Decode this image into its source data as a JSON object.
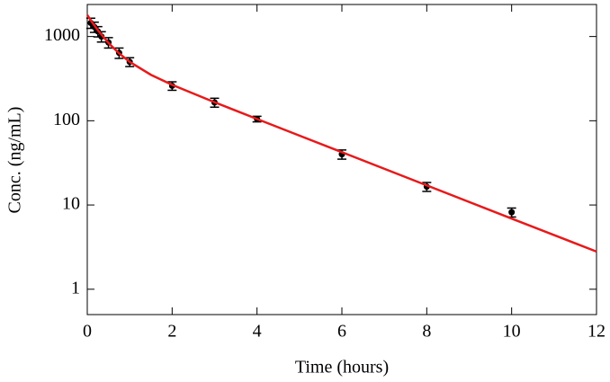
{
  "chart_data": {
    "type": "scatter",
    "xlabel": "Time (hours)",
    "ylabel": "Conc. (ng/mL)",
    "xlim": [
      0,
      12
    ],
    "xticks": [
      0,
      2,
      4,
      6,
      8,
      10,
      12
    ],
    "ylim": [
      0.5,
      2400
    ],
    "yticks": [
      1,
      10,
      100,
      1000
    ],
    "yscale": "log",
    "grid": false,
    "series": [
      {
        "type": "scatter",
        "color": "#000000",
        "x": [
          0.083,
          0.167,
          0.25,
          0.333,
          0.5,
          0.75,
          1,
          2,
          3,
          4,
          6,
          8,
          10
        ],
        "values": [
          1450,
          1300,
          1150,
          1000,
          850,
          640,
          500,
          260,
          165,
          105,
          40,
          16.5,
          8.2
        ],
        "errors": [
          200,
          180,
          160,
          140,
          120,
          90,
          60,
          30,
          20,
          8,
          5,
          2,
          1
        ]
      },
      {
        "type": "line",
        "color": "#e8191a",
        "x": [
          0,
          0.125,
          0.25,
          0.5,
          0.75,
          1,
          1.5,
          2,
          3,
          4,
          5,
          6,
          8,
          10,
          12
        ],
        "values": [
          1800,
          1451,
          1188,
          839,
          631,
          500,
          351,
          267,
          166,
          105,
          66.6,
          42.4,
          17.1,
          6.9,
          2.8
        ]
      }
    ]
  }
}
